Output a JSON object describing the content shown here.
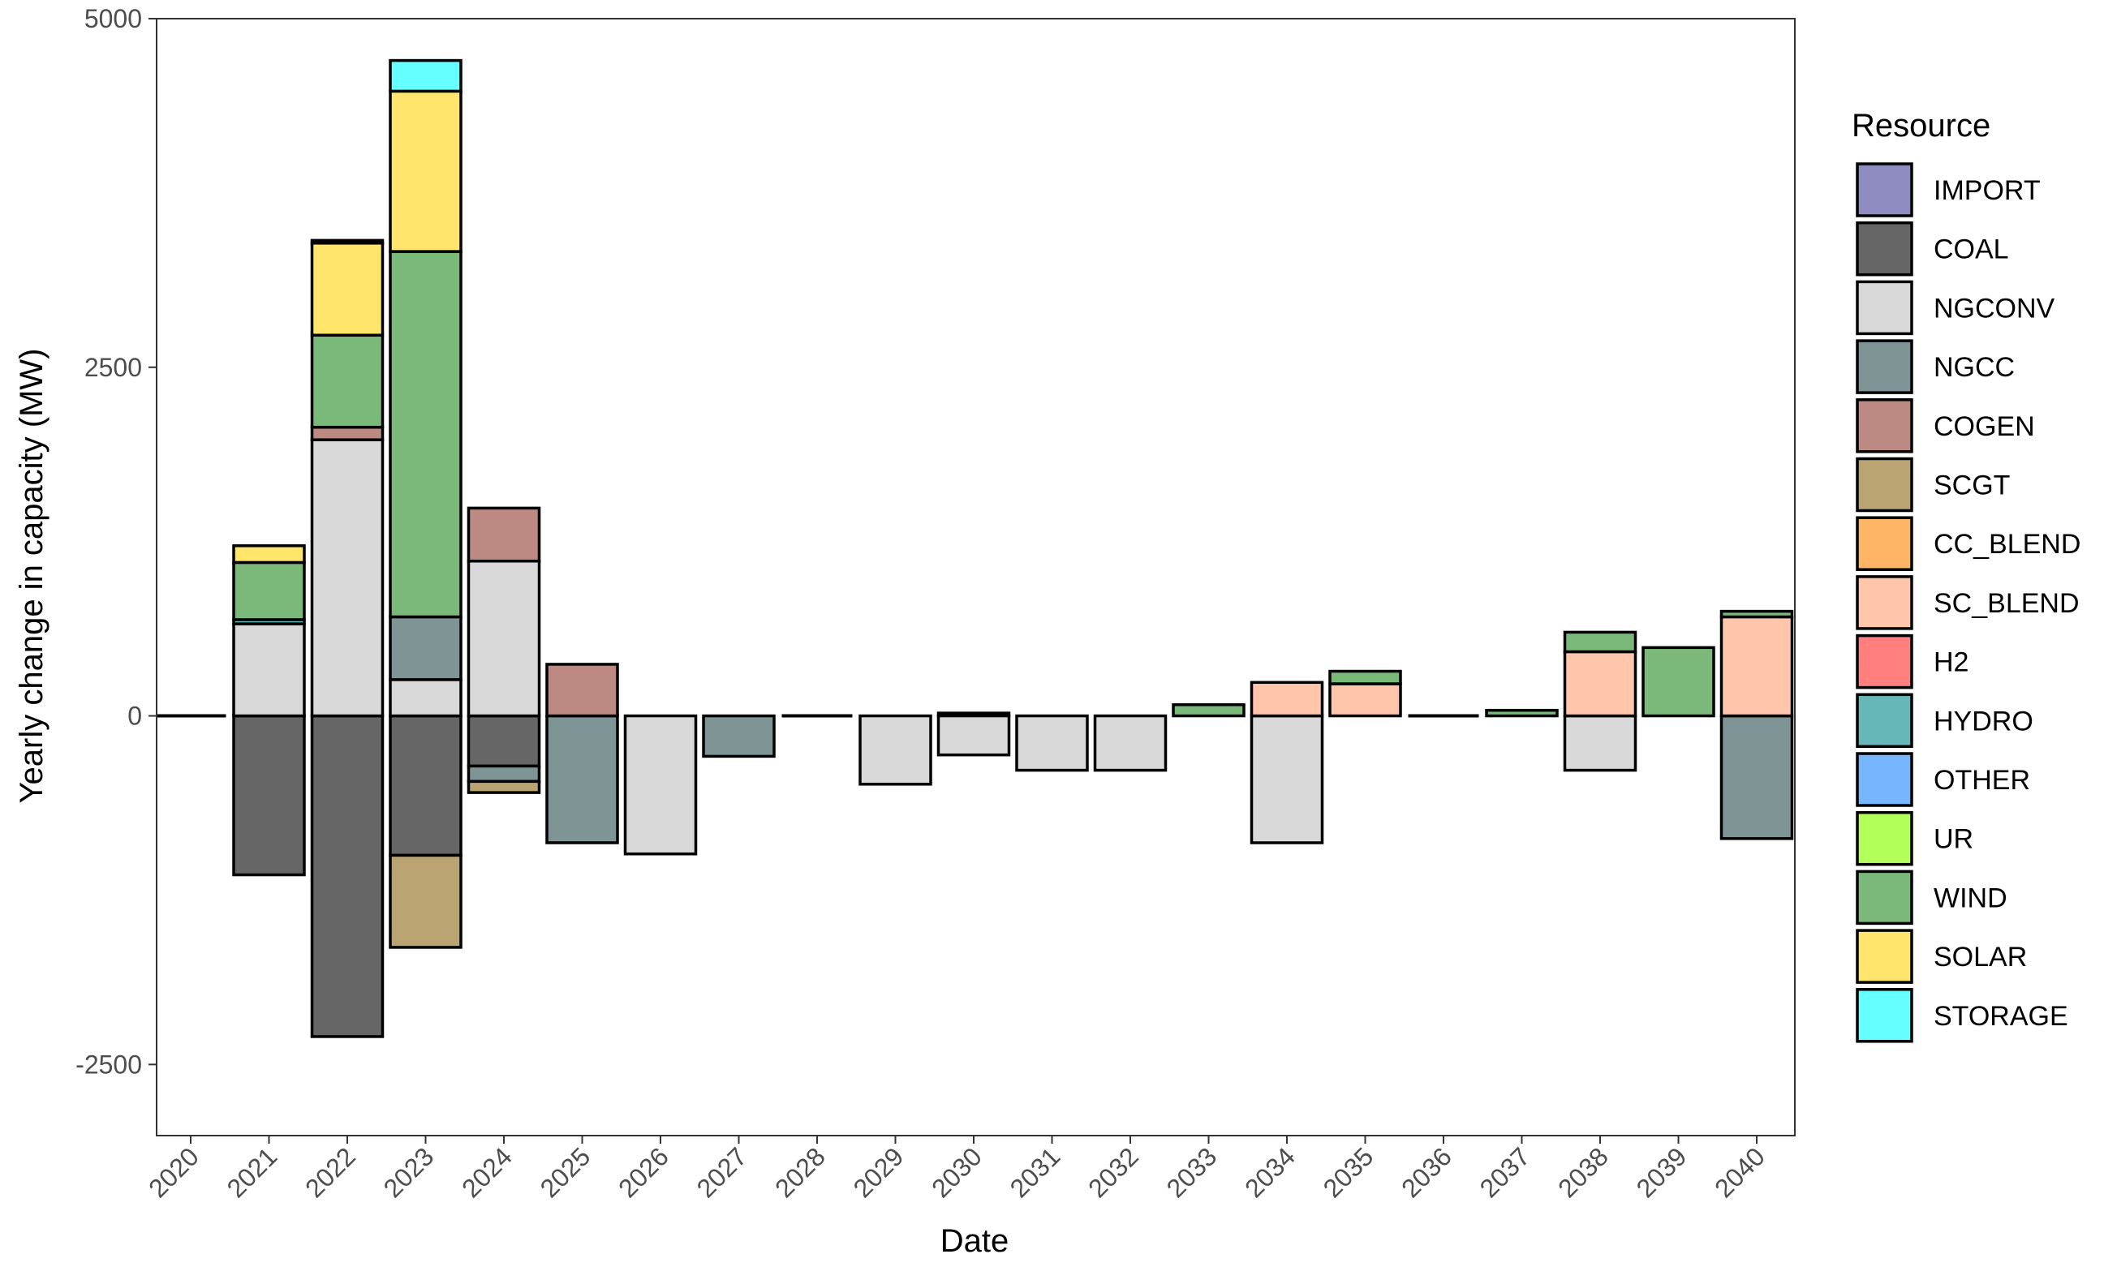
{
  "chart_data": {
    "type": "bar",
    "stacked": true,
    "title": "",
    "xlabel": "Date",
    "ylabel": "Yearly change in capacity (MW)",
    "ylim": [
      -3000,
      5000
    ],
    "yticks": [
      -2500,
      0,
      2500,
      5000
    ],
    "categories": [
      "2020",
      "2021",
      "2022",
      "2023",
      "2024",
      "2025",
      "2026",
      "2027",
      "2028",
      "2029",
      "2030",
      "2031",
      "2032",
      "2033",
      "2034",
      "2035",
      "2036",
      "2037",
      "2038",
      "2039",
      "2040"
    ],
    "legend_title": "Resource",
    "legend_position": "right",
    "series": [
      {
        "name": "IMPORT",
        "color": "#8E8CC0",
        "values": [
          0,
          0,
          0,
          0,
          0,
          0,
          0,
          0,
          0,
          0,
          0,
          0,
          0,
          0,
          0,
          0,
          0,
          0,
          0,
          0,
          0
        ]
      },
      {
        "name": "COAL",
        "color": "#666666",
        "values": [
          0,
          -1140,
          -2300,
          -1000,
          -360,
          0,
          0,
          0,
          0,
          0,
          20,
          0,
          0,
          0,
          0,
          0,
          0,
          0,
          0,
          0,
          0
        ]
      },
      {
        "name": "NGCONV",
        "color": "#D9D9D9",
        "values": [
          0,
          660,
          1980,
          260,
          1110,
          0,
          -990,
          0,
          0,
          -490,
          -280,
          -390,
          -390,
          0,
          -910,
          0,
          0,
          0,
          -390,
          0,
          0
        ]
      },
      {
        "name": "NGCC",
        "color": "#7F9595",
        "values": [
          0,
          0,
          0,
          450,
          -110,
          -910,
          0,
          -290,
          0,
          0,
          0,
          0,
          0,
          0,
          0,
          0,
          0,
          0,
          0,
          0,
          -880
        ]
      },
      {
        "name": "COGEN",
        "color": "#BC8A82",
        "values": [
          0,
          0,
          90,
          0,
          380,
          370,
          0,
          0,
          0,
          0,
          0,
          0,
          0,
          0,
          0,
          0,
          0,
          0,
          0,
          0,
          0
        ]
      },
      {
        "name": "SCGT",
        "color": "#BAA572",
        "values": [
          0,
          0,
          0,
          -660,
          -80,
          0,
          0,
          0,
          0,
          0,
          0,
          0,
          0,
          0,
          0,
          0,
          0,
          0,
          0,
          0,
          0
        ]
      },
      {
        "name": "CC_BLEND",
        "color": "#FFB566",
        "values": [
          0,
          0,
          0,
          0,
          0,
          0,
          0,
          0,
          0,
          0,
          0,
          0,
          0,
          0,
          0,
          0,
          0,
          0,
          0,
          0,
          0
        ]
      },
      {
        "name": "SC_BLEND",
        "color": "#FFC6AC",
        "values": [
          0,
          0,
          0,
          0,
          0,
          0,
          0,
          0,
          0,
          0,
          0,
          0,
          0,
          0,
          240,
          230,
          0,
          0,
          460,
          0,
          710
        ]
      },
      {
        "name": "H2",
        "color": "#FF7F7F",
        "values": [
          0,
          0,
          0,
          0,
          0,
          0,
          0,
          0,
          0,
          0,
          0,
          0,
          0,
          0,
          0,
          0,
          0,
          0,
          0,
          0,
          0
        ]
      },
      {
        "name": "HYDRO",
        "color": "#66B8B8",
        "values": [
          0,
          30,
          0,
          0,
          0,
          0,
          0,
          0,
          0,
          0,
          0,
          0,
          0,
          0,
          0,
          0,
          0,
          0,
          0,
          0,
          0
        ]
      },
      {
        "name": "OTHER",
        "color": "#77B5FE",
        "values": [
          0,
          0,
          0,
          0,
          0,
          0,
          0,
          0,
          0,
          0,
          0,
          0,
          0,
          0,
          0,
          0,
          0,
          0,
          0,
          0,
          0
        ]
      },
      {
        "name": "UR",
        "color": "#B2FF59",
        "values": [
          0,
          0,
          0,
          0,
          0,
          0,
          0,
          0,
          0,
          0,
          0,
          0,
          0,
          0,
          0,
          0,
          0,
          0,
          0,
          0,
          0
        ]
      },
      {
        "name": "WIND",
        "color": "#7BB97B",
        "values": [
          0,
          410,
          660,
          2620,
          0,
          0,
          0,
          0,
          0,
          0,
          0,
          0,
          0,
          80,
          0,
          90,
          0,
          40,
          140,
          490,
          40
        ]
      },
      {
        "name": "SOLAR",
        "color": "#FFE56B",
        "values": [
          0,
          120,
          660,
          1150,
          0,
          0,
          0,
          0,
          0,
          0,
          0,
          0,
          0,
          0,
          0,
          0,
          0,
          0,
          0,
          0,
          0
        ]
      },
      {
        "name": "STORAGE",
        "color": "#66FFFF",
        "values": [
          0,
          0,
          20,
          220,
          0,
          0,
          0,
          0,
          0,
          0,
          0,
          0,
          0,
          0,
          0,
          0,
          0,
          0,
          0,
          0,
          0
        ]
      }
    ]
  }
}
